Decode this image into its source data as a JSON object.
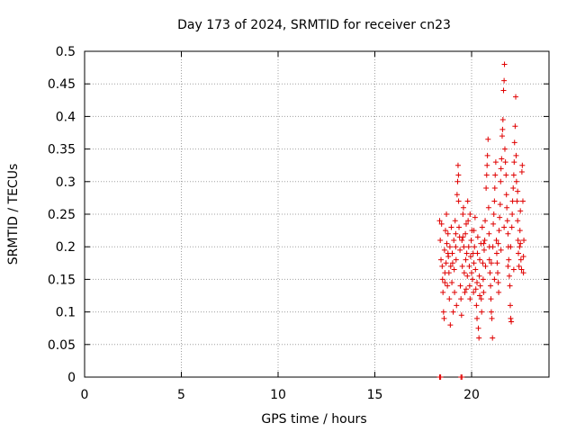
{
  "chart_data": {
    "type": "scatter",
    "title": "Day 173 of 2024, SRMTID for receiver cn23",
    "xlabel": "GPS time / hours",
    "ylabel": "SRMTID / TECUs",
    "xlim": [
      0,
      24
    ],
    "ylim": [
      0,
      0.5
    ],
    "x_ticks": [
      0,
      5,
      10,
      15,
      20
    ],
    "x_tick_labels": [
      "0",
      "5",
      "10",
      "15",
      "20"
    ],
    "y_ticks": [
      0,
      0.05,
      0.1,
      0.15,
      0.2,
      0.25,
      0.3,
      0.35,
      0.4,
      0.45,
      0.5
    ],
    "y_tick_labels": [
      "0",
      "0.05",
      "0.1",
      "0.15",
      "0.2",
      "0.25",
      "0.3",
      "0.35",
      "0.4",
      "0.45",
      "0.5"
    ],
    "grid": true,
    "marker": "+",
    "color": "#e00000",
    "series": [
      {
        "name": "SRMTID",
        "points": [
          [
            18.35,
            0.0
          ],
          [
            18.4,
            0.0
          ],
          [
            19.45,
            0.0
          ],
          [
            19.5,
            0.0
          ],
          [
            18.35,
            0.24
          ],
          [
            18.38,
            0.21
          ],
          [
            18.42,
            0.18
          ],
          [
            18.45,
            0.235
          ],
          [
            18.48,
            0.17
          ],
          [
            18.5,
            0.15
          ],
          [
            18.52,
            0.13
          ],
          [
            18.55,
            0.1
          ],
          [
            18.58,
            0.09
          ],
          [
            18.6,
            0.195
          ],
          [
            18.62,
            0.16
          ],
          [
            18.65,
            0.225
          ],
          [
            18.68,
            0.175
          ],
          [
            18.7,
            0.25
          ],
          [
            18.72,
            0.205
          ],
          [
            18.75,
            0.14
          ],
          [
            18.78,
            0.22
          ],
          [
            18.8,
            0.185
          ],
          [
            18.83,
            0.16
          ],
          [
            18.85,
            0.12
          ],
          [
            18.88,
            0.2
          ],
          [
            18.9,
            0.08
          ],
          [
            18.92,
            0.17
          ],
          [
            18.95,
            0.23
          ],
          [
            18.98,
            0.145
          ],
          [
            19.0,
            0.19
          ],
          [
            19.05,
            0.1
          ],
          [
            19.08,
            0.21
          ],
          [
            19.1,
            0.165
          ],
          [
            19.12,
            0.13
          ],
          [
            19.15,
            0.24
          ],
          [
            19.18,
            0.22
          ],
          [
            19.2,
            0.18
          ],
          [
            19.22,
            0.11
          ],
          [
            19.25,
            0.28
          ],
          [
            19.28,
            0.3
          ],
          [
            19.3,
            0.325
          ],
          [
            19.33,
            0.27
          ],
          [
            19.35,
            0.23
          ],
          [
            19.38,
            0.215
          ],
          [
            19.4,
            0.195
          ],
          [
            19.42,
            0.14
          ],
          [
            19.45,
            0.12
          ],
          [
            19.48,
            0.095
          ],
          [
            19.5,
            0.21
          ],
          [
            19.52,
            0.17
          ],
          [
            19.55,
            0.25
          ],
          [
            19.58,
            0.26
          ],
          [
            19.6,
            0.2
          ],
          [
            19.62,
            0.16
          ],
          [
            19.65,
            0.13
          ],
          [
            19.68,
            0.22
          ],
          [
            19.7,
            0.18
          ],
          [
            19.72,
            0.235
          ],
          [
            19.75,
            0.19
          ],
          [
            19.78,
            0.155
          ],
          [
            19.8,
            0.27
          ],
          [
            19.82,
            0.24
          ],
          [
            19.85,
            0.2
          ],
          [
            19.88,
            0.17
          ],
          [
            19.9,
            0.14
          ],
          [
            19.92,
            0.12
          ],
          [
            19.95,
            0.185
          ],
          [
            19.98,
            0.21
          ],
          [
            20.0,
            0.16
          ],
          [
            20.02,
            0.225
          ],
          [
            20.05,
            0.15
          ],
          [
            20.08,
            0.19
          ],
          [
            20.1,
            0.13
          ],
          [
            20.12,
            0.175
          ],
          [
            20.15,
            0.2
          ],
          [
            20.18,
            0.245
          ],
          [
            20.2,
            0.165
          ],
          [
            20.22,
            0.135
          ],
          [
            20.25,
            0.11
          ],
          [
            20.28,
            0.09
          ],
          [
            20.3,
            0.19
          ],
          [
            20.32,
            0.215
          ],
          [
            20.35,
            0.075
          ],
          [
            20.38,
            0.06
          ],
          [
            20.4,
            0.155
          ],
          [
            20.42,
            0.18
          ],
          [
            20.45,
            0.14
          ],
          [
            20.48,
            0.205
          ],
          [
            20.5,
            0.12
          ],
          [
            20.52,
            0.1
          ],
          [
            20.55,
            0.23
          ],
          [
            20.58,
            0.175
          ],
          [
            20.6,
            0.15
          ],
          [
            20.62,
            0.13
          ],
          [
            20.65,
            0.195
          ],
          [
            20.68,
            0.21
          ],
          [
            20.7,
            0.24
          ],
          [
            20.72,
            0.17
          ],
          [
            20.75,
            0.29
          ],
          [
            20.78,
            0.31
          ],
          [
            20.8,
            0.325
          ],
          [
            20.82,
            0.34
          ],
          [
            20.85,
            0.365
          ],
          [
            20.88,
            0.26
          ],
          [
            20.9,
            0.22
          ],
          [
            20.92,
            0.18
          ],
          [
            20.95,
            0.16
          ],
          [
            20.98,
            0.14
          ],
          [
            21.0,
            0.12
          ],
          [
            21.02,
            0.1
          ],
          [
            21.05,
            0.09
          ],
          [
            21.08,
            0.06
          ],
          [
            21.1,
            0.2
          ],
          [
            21.12,
            0.235
          ],
          [
            21.15,
            0.25
          ],
          [
            21.18,
            0.27
          ],
          [
            21.2,
            0.29
          ],
          [
            21.22,
            0.31
          ],
          [
            21.25,
            0.33
          ],
          [
            21.28,
            0.21
          ],
          [
            21.3,
            0.19
          ],
          [
            21.32,
            0.175
          ],
          [
            21.35,
            0.16
          ],
          [
            21.38,
            0.145
          ],
          [
            21.4,
            0.13
          ],
          [
            21.42,
            0.225
          ],
          [
            21.45,
            0.245
          ],
          [
            21.48,
            0.265
          ],
          [
            21.5,
            0.3
          ],
          [
            21.52,
            0.32
          ],
          [
            21.55,
            0.335
          ],
          [
            21.58,
            0.37
          ],
          [
            21.6,
            0.38
          ],
          [
            21.62,
            0.395
          ],
          [
            21.65,
            0.44
          ],
          [
            21.68,
            0.455
          ],
          [
            21.7,
            0.48
          ],
          [
            21.72,
            0.35
          ],
          [
            21.75,
            0.33
          ],
          [
            21.78,
            0.31
          ],
          [
            21.8,
            0.28
          ],
          [
            21.82,
            0.26
          ],
          [
            21.85,
            0.24
          ],
          [
            21.88,
            0.22
          ],
          [
            21.9,
            0.2
          ],
          [
            21.92,
            0.18
          ],
          [
            21.95,
            0.155
          ],
          [
            21.98,
            0.14
          ],
          [
            22.0,
            0.11
          ],
          [
            22.02,
            0.09
          ],
          [
            22.05,
            0.085
          ],
          [
            22.08,
            0.23
          ],
          [
            22.1,
            0.25
          ],
          [
            22.12,
            0.27
          ],
          [
            22.15,
            0.29
          ],
          [
            22.18,
            0.31
          ],
          [
            22.2,
            0.33
          ],
          [
            22.22,
            0.36
          ],
          [
            22.25,
            0.385
          ],
          [
            22.28,
            0.43
          ],
          [
            22.3,
            0.34
          ],
          [
            22.32,
            0.3
          ],
          [
            22.35,
            0.27
          ],
          [
            22.38,
            0.24
          ],
          [
            22.4,
            0.21
          ],
          [
            22.42,
            0.19
          ],
          [
            22.45,
            0.17
          ],
          [
            22.48,
            0.2
          ],
          [
            22.5,
            0.225
          ],
          [
            22.52,
            0.205
          ],
          [
            22.55,
            0.18
          ],
          [
            22.58,
            0.165
          ],
          [
            22.6,
            0.315
          ],
          [
            22.62,
            0.325
          ],
          [
            22.65,
            0.27
          ],
          [
            22.68,
            0.185
          ],
          [
            22.7,
            0.21
          ],
          [
            18.62,
            0.145
          ],
          [
            18.78,
            0.19
          ],
          [
            19.02,
            0.175
          ],
          [
            19.18,
            0.2
          ],
          [
            19.32,
            0.31
          ],
          [
            19.55,
            0.215
          ],
          [
            19.72,
            0.135
          ],
          [
            19.92,
            0.25
          ],
          [
            20.12,
            0.225
          ],
          [
            20.28,
            0.145
          ],
          [
            20.42,
            0.125
          ],
          [
            20.62,
            0.205
          ],
          [
            20.92,
            0.2
          ],
          [
            21.02,
            0.175
          ],
          [
            21.18,
            0.15
          ],
          [
            21.38,
            0.205
          ],
          [
            21.52,
            0.195
          ],
          [
            21.68,
            0.23
          ],
          [
            21.88,
            0.17
          ],
          [
            22.02,
            0.2
          ],
          [
            22.18,
            0.165
          ],
          [
            22.38,
            0.285
          ],
          [
            22.52,
            0.255
          ],
          [
            22.68,
            0.16
          ]
        ]
      }
    ]
  }
}
